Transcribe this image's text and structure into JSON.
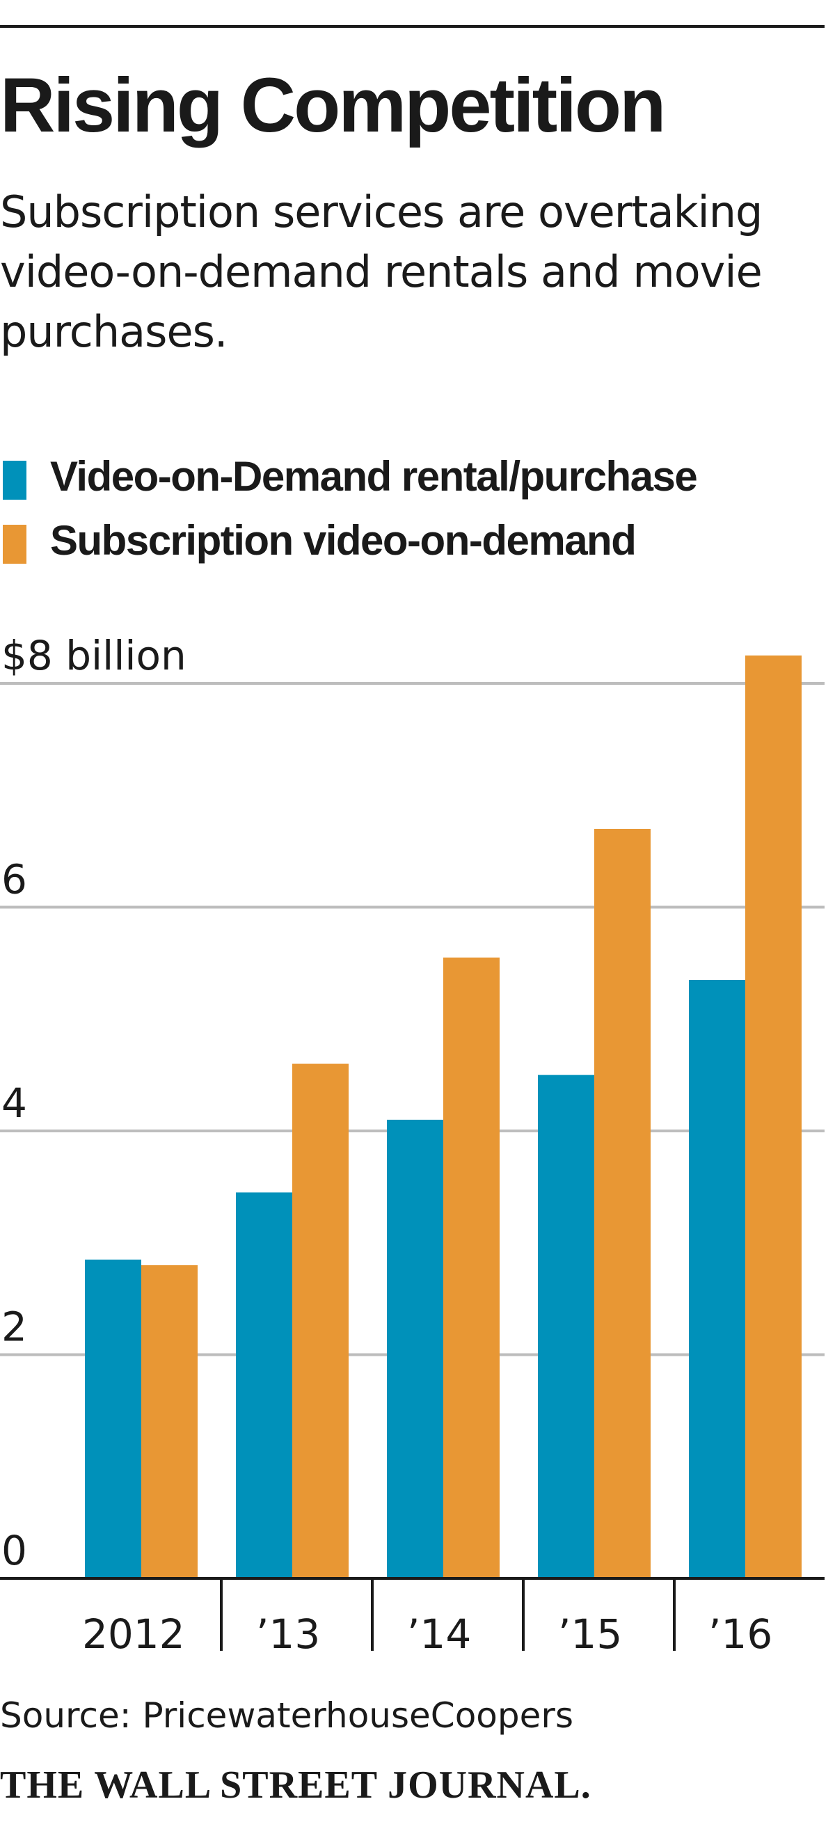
{
  "header": {
    "title": "Rising Competition",
    "subtitle": "Subscription services are overtaking video-on-demand rentals and movie purchases."
  },
  "colors": {
    "rental": "#0091BA",
    "subscription": "#E89734",
    "text": "#1a1a1a",
    "grid": "#bdbdbd"
  },
  "chart_data": {
    "type": "bar",
    "categories": [
      "2012",
      "’13",
      "’14",
      "’15",
      "’16"
    ],
    "series": [
      {
        "name": "Video-on-Demand rental/purchase",
        "values": [
          2.85,
          3.45,
          4.1,
          4.5,
          5.35
        ],
        "color": "#0091BA"
      },
      {
        "name": "Subscription video-on-demand",
        "values": [
          2.8,
          4.6,
          5.55,
          6.7,
          8.25
        ],
        "color": "#E89734"
      }
    ],
    "yticks": [
      {
        "value": 0,
        "label": "0"
      },
      {
        "value": 2,
        "label": "2"
      },
      {
        "value": 4,
        "label": "4"
      },
      {
        "value": 6,
        "label": "6"
      },
      {
        "value": 8,
        "label": "$8 billion"
      }
    ],
    "ylim": [
      0,
      8
    ],
    "grid": true,
    "legend": "top-left",
    "title": "",
    "xlabel": "",
    "ylabel": ""
  },
  "footer": {
    "source": "Source: PricewaterhouseCoopers",
    "brand": "THE WALL STREET JOURNAL."
  }
}
